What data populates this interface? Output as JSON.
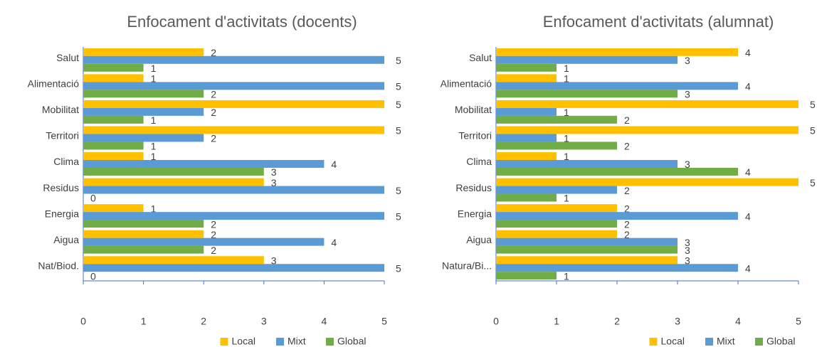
{
  "chart_data": [
    {
      "type": "bar",
      "orientation": "horizontal",
      "title": "Enfocament d'activitats (docents)",
      "categories": [
        "Salut",
        "Alimentació",
        "Mobilitat",
        "Territori",
        "Clima",
        "Residus",
        "Energia",
        "Aigua",
        "Nat/Biod."
      ],
      "series": [
        {
          "name": "Local",
          "color": "#ffc000",
          "values": [
            2,
            1,
            5,
            5,
            1,
            3,
            1,
            2,
            3
          ]
        },
        {
          "name": "Mixt",
          "color": "#5b9bd5",
          "values": [
            5,
            5,
            2,
            2,
            4,
            5,
            5,
            4,
            5
          ]
        },
        {
          "name": "Global",
          "color": "#70ad47",
          "values": [
            1,
            2,
            1,
            1,
            3,
            0,
            2,
            2,
            0
          ]
        }
      ],
      "xlim": [
        0,
        5
      ],
      "xticks": [
        0,
        1,
        2,
        3,
        4,
        5
      ],
      "legend": "bottom"
    },
    {
      "type": "bar",
      "orientation": "horizontal",
      "title": "Enfocament d'activitats (alumnat)",
      "categories": [
        "Salut",
        "Alimentació",
        "Mobilitat",
        "Territori",
        "Clima",
        "Residus",
        "Energia",
        "Aigua",
        "Natura/Bi..."
      ],
      "series": [
        {
          "name": "Local",
          "color": "#ffc000",
          "values": [
            4,
            1,
            5,
            5,
            1,
            5,
            2,
            2,
            3
          ]
        },
        {
          "name": "Mixt",
          "color": "#5b9bd5",
          "values": [
            3,
            4,
            1,
            1,
            3,
            2,
            4,
            3,
            4
          ]
        },
        {
          "name": "Global",
          "color": "#70ad47",
          "values": [
            1,
            3,
            2,
            2,
            4,
            1,
            2,
            3,
            1
          ]
        }
      ],
      "xlim": [
        0,
        5
      ],
      "xticks": [
        0,
        1,
        2,
        3,
        4,
        5
      ],
      "legend": "bottom"
    }
  ]
}
